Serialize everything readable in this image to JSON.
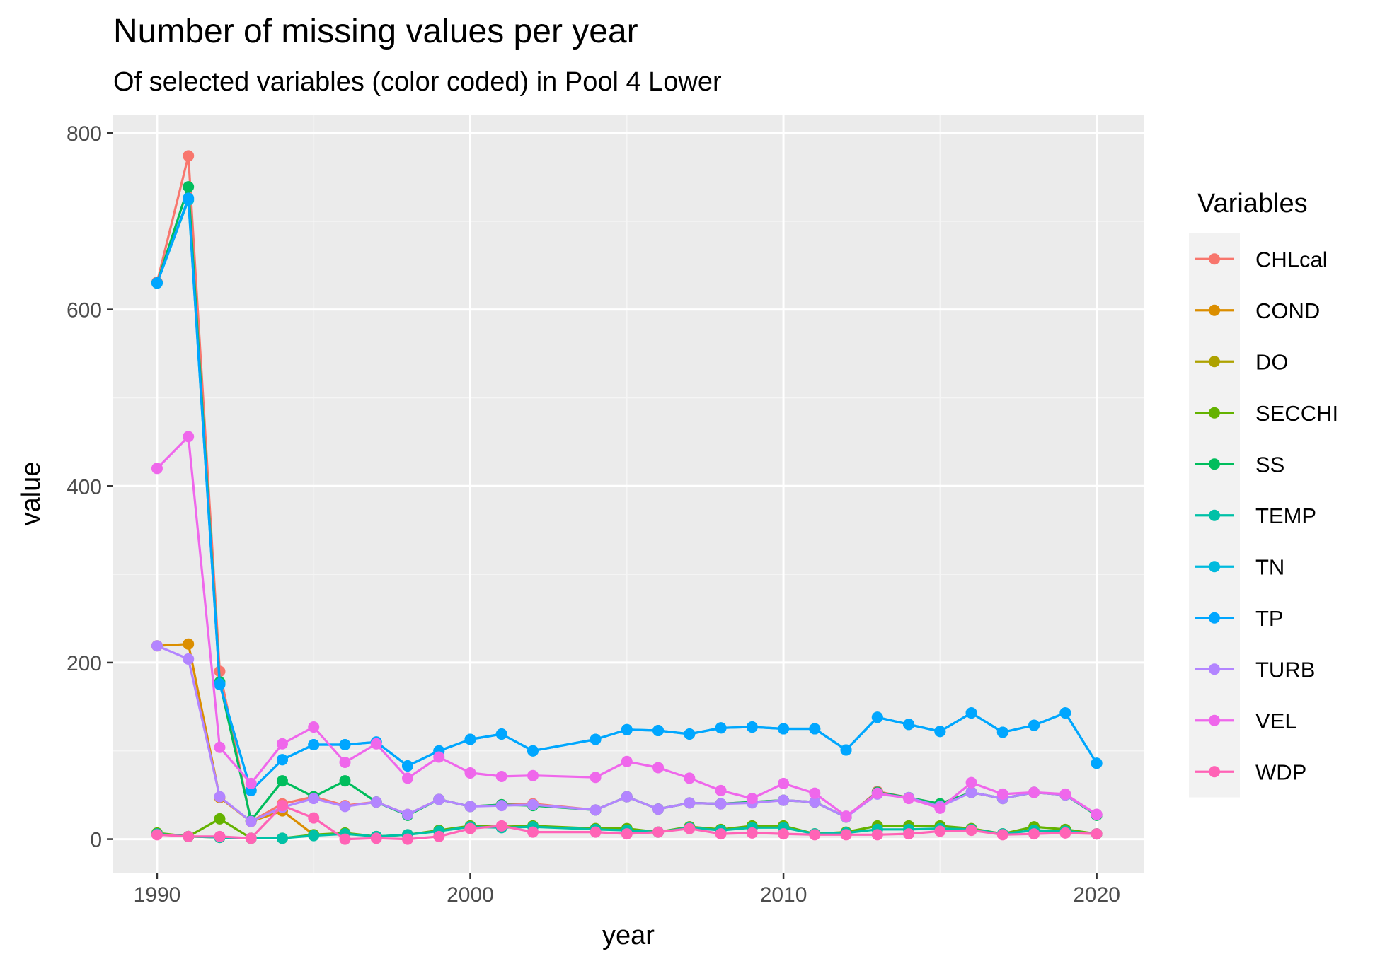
{
  "chart_data": {
    "type": "line",
    "title": "Number of missing values per year",
    "subtitle": "Of selected variables (color coded) in Pool 4 Lower",
    "xlabel": "year",
    "ylabel": "value",
    "xlim": [
      1988.6,
      2021.5
    ],
    "ylim": [
      -38,
      820
    ],
    "x_ticks": [
      1990,
      2000,
      2010,
      2020
    ],
    "y_ticks": [
      0,
      200,
      400,
      600,
      800
    ],
    "grid": true,
    "legend_title": "Variables",
    "legend_position": "right",
    "x": [
      1990,
      1991,
      1992,
      1993,
      1994,
      1995,
      1996,
      1997,
      1998,
      1999,
      2000,
      2001,
      2002,
      2004,
      2005,
      2006,
      2007,
      2008,
      2009,
      2010,
      2011,
      2012,
      2013,
      2014,
      2015,
      2016,
      2017,
      2018,
      2019,
      2020
    ],
    "series": [
      {
        "name": "CHLcal",
        "color": "#F8766D",
        "values": [
          631,
          774,
          190,
          20,
          40,
          48,
          38,
          42,
          28,
          45,
          37,
          39,
          40,
          33,
          48,
          34,
          41,
          40,
          42,
          44,
          42,
          25,
          54,
          47,
          40,
          53,
          46,
          53,
          50,
          28
        ]
      },
      {
        "name": "COND",
        "color": "#DB8E00",
        "values": [
          219,
          221,
          47,
          20,
          32,
          5,
          null,
          null,
          null,
          null,
          null,
          null,
          null,
          null,
          null,
          null,
          null,
          null,
          null,
          null,
          null,
          null,
          null,
          null,
          null,
          null,
          null,
          null,
          null,
          null
        ]
      },
      {
        "name": "DO",
        "color": "#AEA200",
        "values": [
          6,
          3,
          2,
          1,
          null,
          null,
          null,
          null,
          null,
          null,
          null,
          null,
          null,
          null,
          null,
          null,
          null,
          null,
          null,
          null,
          null,
          null,
          null,
          null,
          null,
          null,
          null,
          null,
          null,
          null
        ]
      },
      {
        "name": "SECCHI",
        "color": "#64B200",
        "values": [
          7,
          3,
          23,
          1,
          1,
          5,
          7,
          3,
          5,
          10,
          15,
          14,
          15,
          12,
          12,
          8,
          14,
          11,
          15,
          15,
          6,
          8,
          15,
          15,
          15,
          12,
          6,
          14,
          11,
          6
        ]
      },
      {
        "name": "SS",
        "color": "#00BD5C",
        "values": [
          630,
          739,
          178,
          21,
          66,
          48,
          66,
          42,
          27,
          45,
          37,
          39,
          38,
          33,
          48,
          34,
          41,
          40,
          42,
          44,
          42,
          25,
          53,
          47,
          40,
          53,
          46,
          53,
          50,
          27
        ]
      },
      {
        "name": "TEMP",
        "color": "#00C1A7",
        "values": [
          6,
          3,
          2,
          1,
          1,
          4,
          6,
          3,
          5,
          9,
          14,
          13,
          14,
          11,
          10,
          8,
          13,
          10,
          13,
          13,
          6,
          7,
          11,
          11,
          12,
          11,
          6,
          10,
          9,
          6
        ]
      },
      {
        "name": "TN",
        "color": "#00BADE",
        "values": [
          630,
          724,
          176,
          55,
          90,
          107,
          107,
          110,
          83,
          100,
          113,
          119,
          100,
          113,
          124,
          123,
          119,
          126,
          127,
          125,
          125,
          101,
          138,
          130,
          122,
          143,
          121,
          129,
          143,
          86
        ]
      },
      {
        "name": "TP",
        "color": "#00A6FF",
        "values": [
          630,
          726,
          175,
          55,
          90,
          107,
          107,
          110,
          83,
          100,
          113,
          119,
          100,
          113,
          124,
          123,
          119,
          126,
          127,
          125,
          125,
          101,
          138,
          130,
          122,
          143,
          121,
          129,
          143,
          86
        ]
      },
      {
        "name": "TURB",
        "color": "#B385FF",
        "values": [
          219,
          204,
          48,
          20,
          36,
          46,
          37,
          42,
          28,
          45,
          37,
          38,
          39,
          33,
          48,
          34,
          41,
          40,
          41,
          44,
          42,
          25,
          51,
          47,
          37,
          53,
          46,
          53,
          50,
          28
        ]
      },
      {
        "name": "VEL",
        "color": "#EF67EB",
        "values": [
          420,
          456,
          104,
          63,
          108,
          127,
          87,
          108,
          69,
          93,
          75,
          71,
          72,
          70,
          88,
          81,
          69,
          55,
          46,
          63,
          52,
          26,
          52,
          46,
          35,
          64,
          51,
          53,
          51,
          28
        ]
      },
      {
        "name": "WDP",
        "color": "#FF63B6",
        "values": [
          5,
          3,
          3,
          1,
          38,
          24,
          0,
          1,
          0,
          3,
          12,
          15,
          8,
          8,
          6,
          8,
          12,
          6,
          7,
          6,
          5,
          5,
          5,
          6,
          9,
          10,
          5,
          6,
          7,
          6
        ]
      }
    ]
  }
}
